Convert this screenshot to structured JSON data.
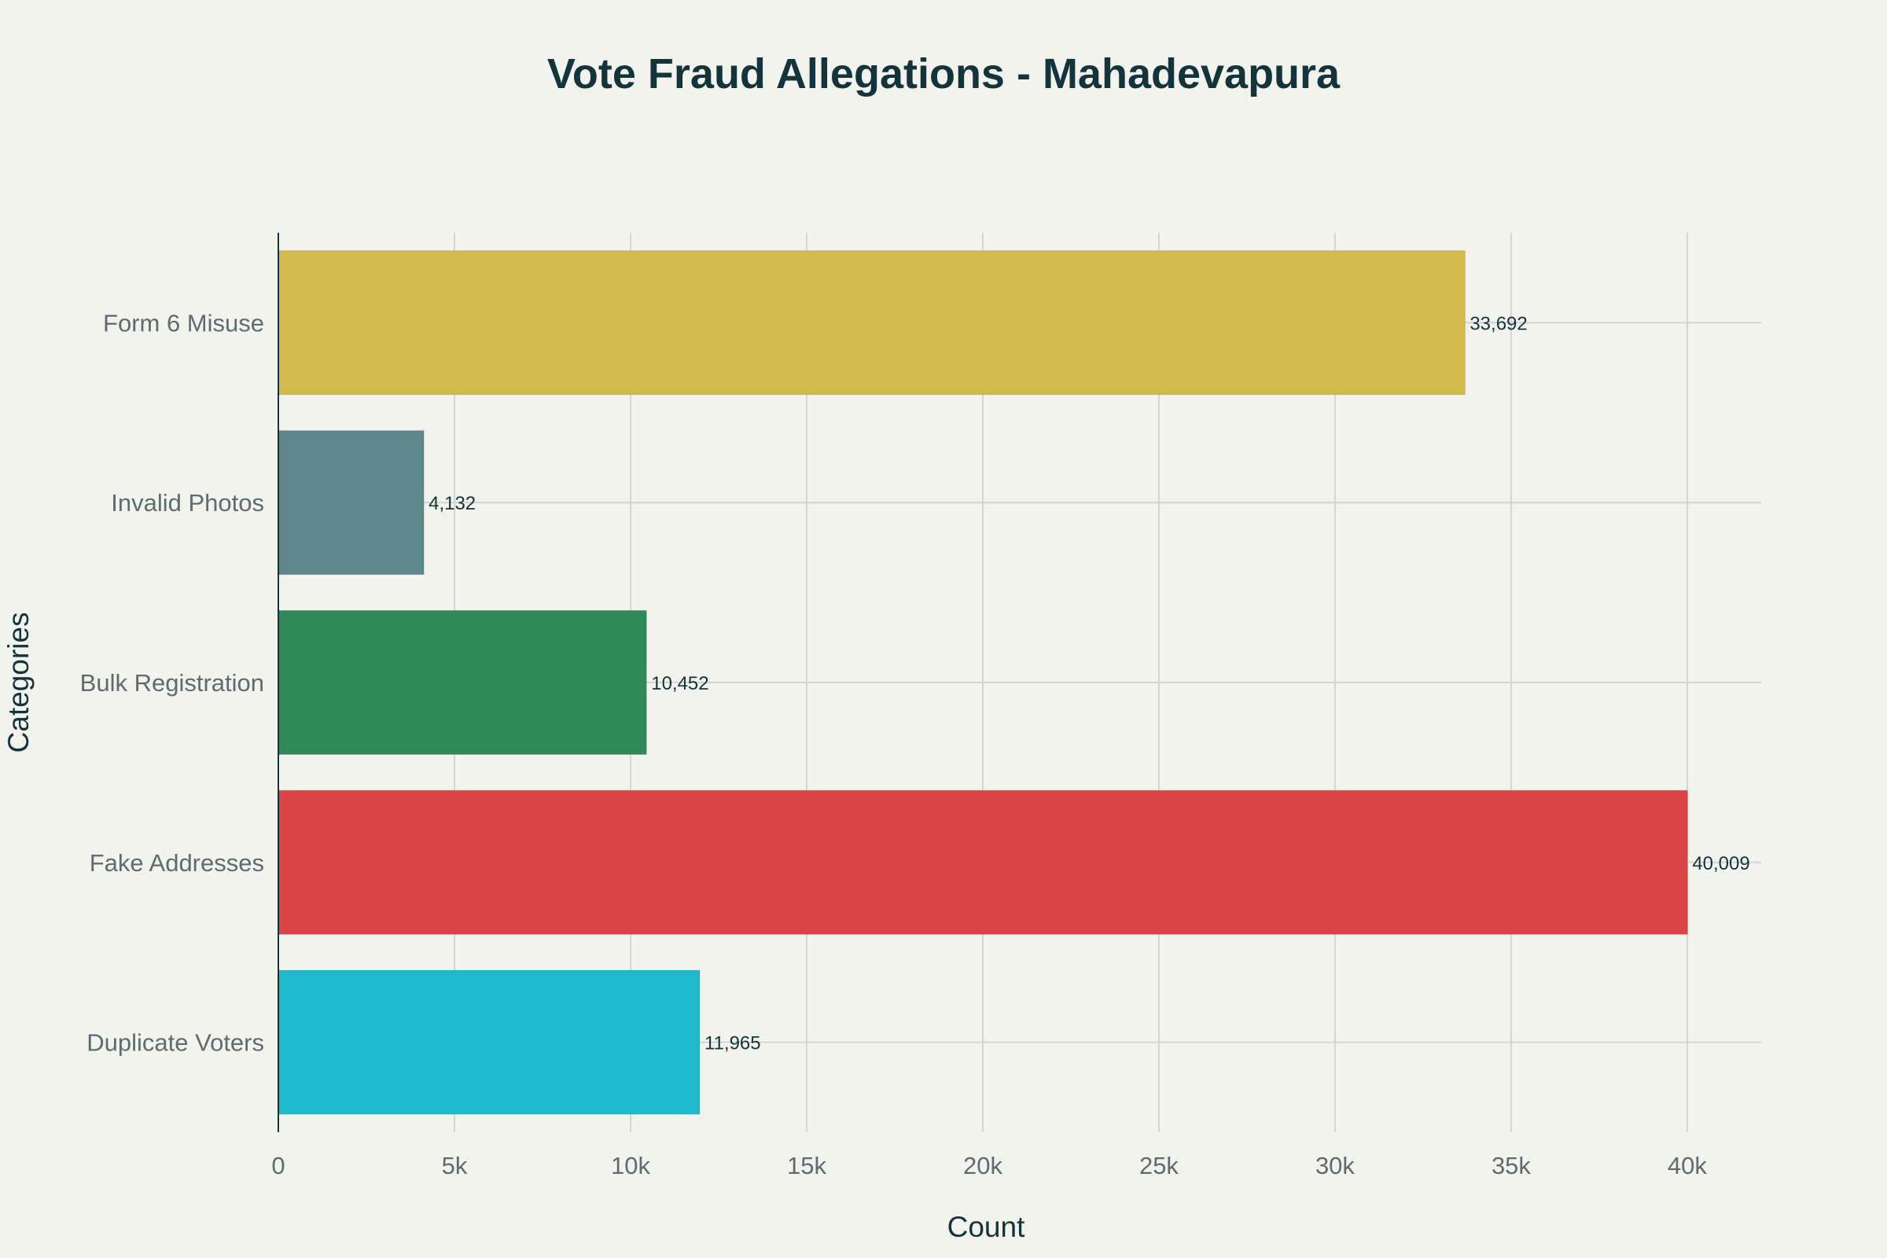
{
  "chart_data": {
    "type": "bar",
    "orientation": "horizontal",
    "title": "Vote Fraud Allegations - Mahadevapura",
    "xlabel": "Count",
    "ylabel": "Categories",
    "categories": [
      "Form 6 Misuse",
      "Invalid Photos",
      "Bulk Registration",
      "Fake Addresses",
      "Duplicate Voters"
    ],
    "values": [
      33692,
      4132,
      10452,
      40009,
      11965
    ],
    "value_labels": [
      "33,692",
      "4,132",
      "10,452",
      "40,009",
      "11,965"
    ],
    "colors": [
      "#d2ba4c",
      "#5d878b",
      "#2e8b57",
      "#db4545",
      "#1fb8cd"
    ],
    "xlim": [
      0,
      42100
    ],
    "x_ticks": [
      0,
      5000,
      10000,
      15000,
      20000,
      25000,
      30000,
      35000,
      40000
    ],
    "x_tick_labels": [
      "0",
      "5k",
      "10k",
      "15k",
      "20k",
      "25k",
      "30k",
      "35k",
      "40k"
    ],
    "grid": true
  }
}
